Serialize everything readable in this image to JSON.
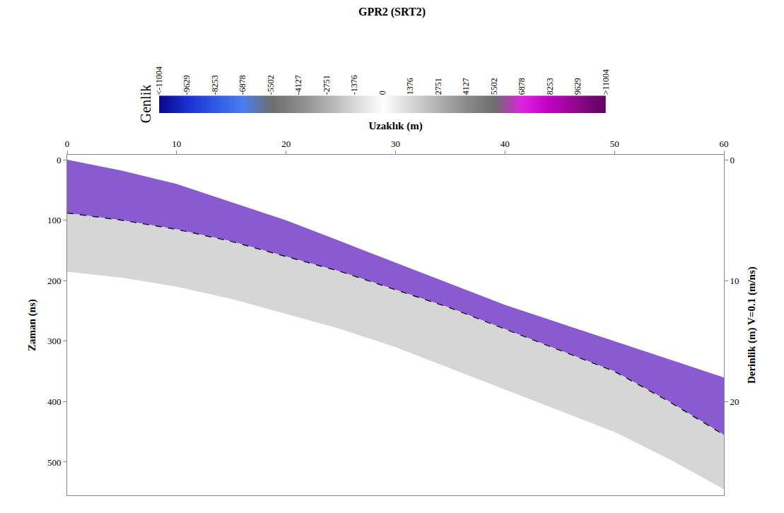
{
  "chart_data": {
    "type": "area",
    "title": "GPR2 (SRT2)",
    "x_label": "Uzaklık (m)",
    "y_label": "Zaman (ns)",
    "y2_label": "Derinlik (m) V=0.1 (m/ns)",
    "x": [
      0,
      5,
      10,
      15,
      20,
      25,
      30,
      35,
      40,
      45,
      50,
      55,
      60
    ],
    "layers": [
      {
        "top": [
          0,
          18,
          40,
          70,
          100,
          135,
          170,
          205,
          240,
          270,
          300,
          330,
          360
        ],
        "bottom": [
          88,
          100,
          115,
          135,
          160,
          185,
          215,
          245,
          280,
          315,
          350,
          400,
          455
        ],
        "color": "#8a5ad0"
      },
      {
        "top": [
          88,
          100,
          115,
          135,
          160,
          185,
          215,
          245,
          280,
          315,
          350,
          400,
          455
        ],
        "bottom": [
          185,
          195,
          210,
          230,
          255,
          280,
          310,
          345,
          380,
          415,
          450,
          495,
          545
        ],
        "color": "#d6d6d6"
      }
    ],
    "interface": {
      "values": [
        88,
        100,
        115,
        135,
        160,
        185,
        215,
        245,
        280,
        315,
        350,
        400,
        455
      ],
      "line_style": "dashed",
      "color": "#1a1a1a"
    },
    "xlim": [
      0,
      60
    ],
    "xticks": [
      0,
      10,
      20,
      30,
      40,
      50,
      60
    ],
    "ylim": [
      555,
      -8
    ],
    "yticks": [
      0,
      100,
      200,
      300,
      400,
      500
    ],
    "y2lim": [
      27.75,
      -0.4
    ],
    "y2ticks": [
      0,
      10,
      20
    ],
    "colorbar": {
      "title": "Genlik",
      "range": [
        -11004,
        11004
      ],
      "ticks": [
        {
          "value": -11004,
          "label": "<-11004"
        },
        -9629,
        -8253,
        -6878,
        -5502,
        -4127,
        -2751,
        -1376,
        0,
        1376,
        2751,
        4127,
        5502,
        6878,
        8253,
        9629,
        {
          "value": 11004,
          "label": ">11004"
        }
      ],
      "colors": [
        "#0a0a8c",
        "#1a2fd0",
        "#2f5ae6",
        "#4a7ff0",
        "#6e6e6e",
        "#8a8a8a",
        "#b0b0b0",
        "#d8d8d8",
        "#ffffff",
        "#d8d8d8",
        "#b0b0b0",
        "#8a8a8a",
        "#6e6e6e",
        "#e020e0",
        "#c000c0",
        "#8a0a8a",
        "#600060"
      ]
    }
  }
}
